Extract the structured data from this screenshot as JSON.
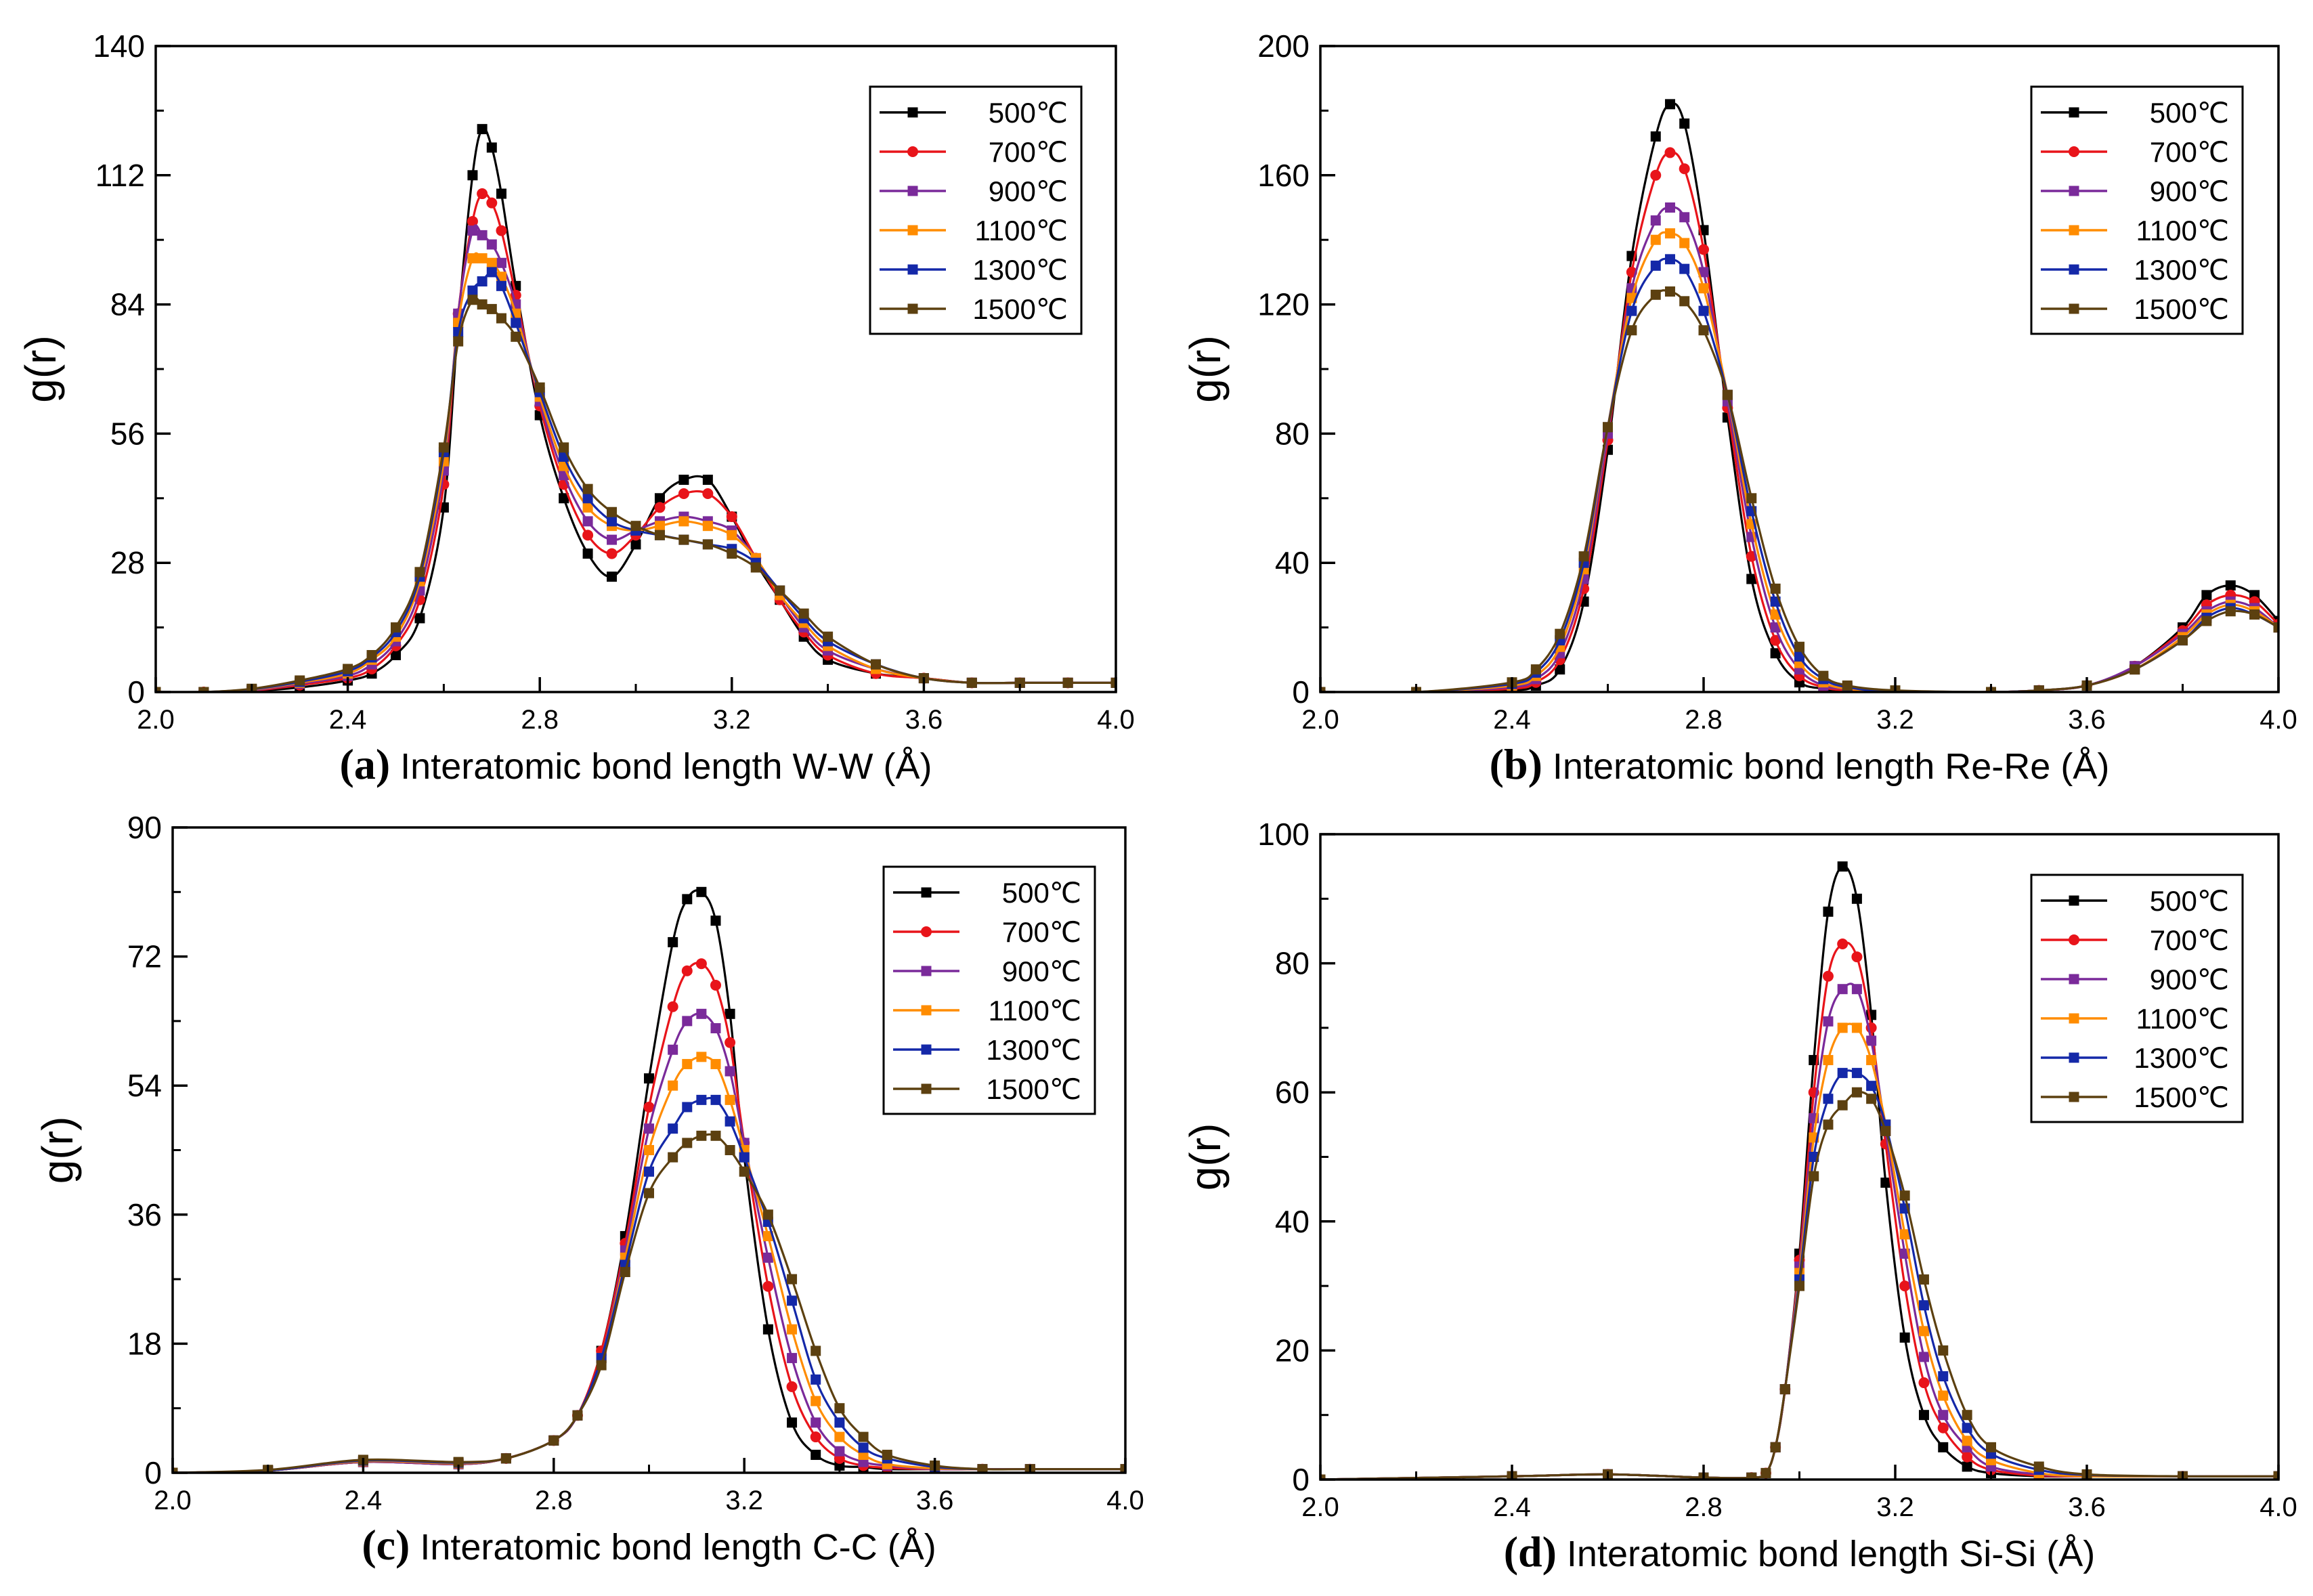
{
  "figure": {
    "series_names": [
      "500℃",
      "700℃",
      "900℃",
      "1100℃",
      "1300℃",
      "1500℃"
    ],
    "series_colors": [
      "#000000",
      "#e8141a",
      "#7a2a9a",
      "#ff8c00",
      "#1428a8",
      "#5c4010"
    ],
    "marker_shapes": [
      "square",
      "circle",
      "square",
      "square",
      "square",
      "square"
    ]
  },
  "chart_data": [
    {
      "id": "a",
      "type": "line",
      "panel_label": "(a)",
      "xlabel": "Interatomic bond length W-W (Å)",
      "ylabel": "g(r)",
      "xlim": [
        2.0,
        4.0
      ],
      "ylim": [
        0,
        140
      ],
      "xticks": [
        2.0,
        2.4,
        2.8,
        3.2,
        3.6,
        4.0
      ],
      "yticks": [
        0,
        28,
        56,
        84,
        112,
        140
      ],
      "legend_position": "top-right",
      "x": [
        2.0,
        2.1,
        2.2,
        2.3,
        2.4,
        2.45,
        2.5,
        2.55,
        2.6,
        2.63,
        2.66,
        2.68,
        2.7,
        2.72,
        2.75,
        2.8,
        2.85,
        2.9,
        2.95,
        3.0,
        3.05,
        3.1,
        3.15,
        3.2,
        3.25,
        3.3,
        3.35,
        3.4,
        3.5,
        3.6,
        3.7,
        3.8,
        3.9,
        4.0
      ],
      "series": [
        {
          "name": "500℃",
          "values": [
            0,
            0,
            0.2,
            1,
            2.5,
            4,
            8,
            16,
            40,
            80,
            112,
            122,
            118,
            108,
            88,
            60,
            42,
            30,
            25,
            32,
            42,
            46,
            46,
            38,
            28,
            20,
            12,
            7,
            4,
            3,
            2,
            2,
            2,
            2
          ]
        },
        {
          "name": "700℃",
          "values": [
            0,
            0,
            0.3,
            1.5,
            3,
            5,
            10,
            20,
            45,
            82,
            102,
            108,
            106,
            100,
            86,
            62,
            45,
            34,
            30,
            34,
            40,
            43,
            43,
            38,
            29,
            20,
            13,
            8,
            4,
            3,
            2,
            2,
            2,
            2
          ]
        },
        {
          "name": "900℃",
          "values": [
            0,
            0,
            0.4,
            1.8,
            3.5,
            6,
            11,
            22,
            48,
            82,
            100,
            99,
            97,
            93,
            84,
            63,
            47,
            37,
            33,
            35,
            37,
            38,
            37,
            35,
            29,
            21,
            14,
            9,
            5,
            3,
            2,
            2,
            2,
            2
          ]
        },
        {
          "name": "1100℃",
          "values": [
            0,
            0,
            0.5,
            2,
            4,
            7,
            12,
            24,
            50,
            80,
            94,
            94,
            93,
            90,
            82,
            64,
            49,
            40,
            36,
            35,
            36,
            37,
            36,
            34,
            29,
            21,
            15,
            10,
            5,
            3,
            2,
            2,
            2,
            2
          ]
        },
        {
          "name": "1300℃",
          "values": [
            0,
            0,
            0.6,
            2.2,
            4.5,
            7.5,
            13,
            25,
            52,
            78,
            87,
            89,
            91,
            88,
            80,
            65,
            51,
            42,
            37,
            35,
            34,
            33,
            32,
            31,
            28,
            22,
            16,
            11,
            6,
            3,
            2,
            2,
            2,
            2
          ]
        },
        {
          "name": "1500℃",
          "values": [
            0,
            0,
            0.7,
            2.5,
            5,
            8,
            14,
            26,
            53,
            76,
            85,
            84,
            83,
            81,
            77,
            66,
            53,
            44,
            39,
            36,
            34,
            33,
            32,
            30,
            27,
            22,
            17,
            12,
            6,
            3,
            2,
            2,
            2,
            2
          ]
        }
      ]
    },
    {
      "id": "b",
      "type": "line",
      "panel_label": "(b)",
      "xlabel": "Interatomic bond length Re-Re (Å)",
      "ylabel": "g(r)",
      "xlim": [
        2.0,
        4.0
      ],
      "ylim": [
        0,
        200
      ],
      "xticks": [
        2.0,
        2.4,
        2.8,
        3.2,
        3.6,
        4.0
      ],
      "yticks": [
        0,
        40,
        80,
        120,
        160,
        200
      ],
      "legend_position": "top-right",
      "x": [
        2.0,
        2.2,
        2.4,
        2.45,
        2.5,
        2.55,
        2.6,
        2.65,
        2.7,
        2.73,
        2.76,
        2.8,
        2.85,
        2.9,
        2.95,
        3.0,
        3.05,
        3.1,
        3.2,
        3.4,
        3.5,
        3.6,
        3.7,
        3.8,
        3.85,
        3.9,
        3.95,
        4.0
      ],
      "series": [
        {
          "name": "500℃",
          "values": [
            0,
            0,
            0.5,
            2,
            7,
            28,
            75,
            135,
            172,
            182,
            176,
            143,
            85,
            35,
            12,
            3,
            1,
            0,
            0,
            0,
            0.5,
            2,
            8,
            20,
            30,
            33,
            30,
            22
          ]
        },
        {
          "name": "700℃",
          "values": [
            0,
            0,
            1,
            3,
            10,
            32,
            78,
            130,
            160,
            167,
            162,
            137,
            88,
            42,
            16,
            5,
            1.5,
            0.5,
            0,
            0,
            0.5,
            2,
            8,
            19,
            27,
            30,
            28,
            21
          ]
        },
        {
          "name": "900℃",
          "values": [
            0,
            0,
            1.5,
            4,
            12,
            35,
            80,
            125,
            146,
            150,
            147,
            130,
            90,
            48,
            20,
            7,
            2,
            1,
            0,
            0,
            0.5,
            2,
            8,
            18,
            25,
            28,
            26,
            20
          ]
        },
        {
          "name": "1100℃",
          "values": [
            0,
            0,
            2,
            5,
            14,
            38,
            82,
            122,
            140,
            142,
            139,
            125,
            92,
            52,
            24,
            9,
            3,
            1,
            0,
            0,
            0.5,
            2,
            7,
            17,
            24,
            27,
            25,
            20
          ]
        },
        {
          "name": "1300℃",
          "values": [
            0,
            0,
            2.5,
            6,
            16,
            40,
            82,
            118,
            132,
            134,
            131,
            118,
            92,
            56,
            28,
            11,
            4,
            1.5,
            0,
            0,
            0.5,
            2,
            7,
            16,
            23,
            26,
            24,
            20
          ]
        },
        {
          "name": "1500℃",
          "values": [
            0,
            0,
            3,
            7,
            18,
            42,
            82,
            112,
            123,
            124,
            121,
            112,
            92,
            60,
            32,
            14,
            5,
            2,
            0.5,
            0,
            0.5,
            2,
            7,
            16,
            22,
            25,
            24,
            20
          ]
        }
      ]
    },
    {
      "id": "c",
      "type": "line",
      "panel_label": "(c)",
      "xlabel": "Interatomic bond length C-C (Å)",
      "ylabel": "g(r)",
      "xlim": [
        2.0,
        4.0
      ],
      "ylim": [
        0,
        90
      ],
      "xticks": [
        2.0,
        2.4,
        2.8,
        3.2,
        3.6,
        4.0
      ],
      "yticks": [
        0,
        18,
        36,
        54,
        72,
        90
      ],
      "legend_position": "top-right",
      "x": [
        2.0,
        2.2,
        2.4,
        2.6,
        2.7,
        2.8,
        2.85,
        2.9,
        2.95,
        3.0,
        3.05,
        3.08,
        3.11,
        3.14,
        3.17,
        3.2,
        3.25,
        3.3,
        3.35,
        3.4,
        3.45,
        3.5,
        3.6,
        3.7,
        3.8,
        4.0
      ],
      "series": [
        {
          "name": "500℃",
          "values": [
            0,
            0.3,
            1.5,
            1.2,
            2,
            4.5,
            8,
            17,
            33,
            55,
            74,
            80,
            81,
            77,
            64,
            44,
            20,
            7,
            2.5,
            1,
            0.8,
            0.5,
            0.5,
            0.5,
            0.5,
            0.5
          ]
        },
        {
          "name": "700℃",
          "values": [
            0,
            0.3,
            1.5,
            1.2,
            2,
            4.5,
            8,
            17,
            32,
            51,
            65,
            70,
            71,
            68,
            60,
            46,
            26,
            12,
            5,
            2,
            1,
            0.7,
            0.5,
            0.5,
            0.5,
            0.5
          ]
        },
        {
          "name": "900℃",
          "values": [
            0,
            0.3,
            1.5,
            1.2,
            2,
            4.5,
            8,
            16,
            31,
            48,
            59,
            63,
            64,
            62,
            56,
            46,
            30,
            16,
            7,
            3,
            1.5,
            1,
            0.5,
            0.5,
            0.5,
            0.5
          ]
        },
        {
          "name": "1100℃",
          "values": [
            0,
            0.3,
            1.6,
            1.3,
            2,
            4.5,
            8,
            16,
            30,
            45,
            54,
            57,
            58,
            57,
            52,
            45,
            33,
            20,
            10,
            5,
            2.5,
            1.2,
            0.6,
            0.5,
            0.5,
            0.5
          ]
        },
        {
          "name": "1300℃",
          "values": [
            0,
            0.3,
            1.7,
            1.4,
            2,
            4.5,
            8,
            16,
            29,
            42,
            48,
            51,
            52,
            52,
            49,
            44,
            35,
            24,
            13,
            7,
            3.5,
            2,
            0.8,
            0.5,
            0.5,
            0.5
          ]
        },
        {
          "name": "1500℃",
          "values": [
            0,
            0.4,
            1.8,
            1.5,
            2,
            4.5,
            8,
            15,
            28,
            39,
            44,
            46,
            47,
            47,
            45,
            42,
            36,
            27,
            17,
            9,
            5,
            2.5,
            1,
            0.5,
            0.5,
            0.5
          ]
        }
      ]
    },
    {
      "id": "d",
      "type": "line",
      "panel_label": "(d)",
      "xlabel": "Interatomic bond length Si-Si (Å)",
      "ylabel": "g(r)",
      "xlim": [
        2.0,
        4.0
      ],
      "ylim": [
        0,
        100
      ],
      "xticks": [
        2.0,
        2.4,
        2.8,
        3.2,
        3.6,
        4.0
      ],
      "yticks": [
        0,
        20,
        40,
        60,
        80,
        100
      ],
      "legend_position": "top-right",
      "x": [
        2.0,
        2.4,
        2.6,
        2.8,
        2.9,
        2.93,
        2.95,
        2.97,
        3.0,
        3.03,
        3.06,
        3.09,
        3.12,
        3.15,
        3.18,
        3.22,
        3.26,
        3.3,
        3.35,
        3.4,
        3.5,
        3.6,
        3.8,
        4.0
      ],
      "series": [
        {
          "name": "500℃",
          "values": [
            0,
            0.5,
            0.8,
            0.3,
            0.3,
            1,
            5,
            14,
            35,
            65,
            88,
            95,
            90,
            72,
            46,
            22,
            10,
            5,
            2,
            1,
            0.5,
            0.5,
            0.5,
            0.5
          ]
        },
        {
          "name": "700℃",
          "values": [
            0,
            0.5,
            0.8,
            0.3,
            0.3,
            1,
            5,
            14,
            34,
            60,
            78,
            83,
            81,
            70,
            52,
            30,
            15,
            8,
            3.5,
            1.5,
            0.6,
            0.5,
            0.5,
            0.5
          ]
        },
        {
          "name": "900℃",
          "values": [
            0,
            0.5,
            0.8,
            0.3,
            0.3,
            1,
            5,
            14,
            33,
            56,
            71,
            76,
            76,
            68,
            54,
            35,
            19,
            10,
            5,
            2,
            0.8,
            0.5,
            0.5,
            0.5
          ]
        },
        {
          "name": "1100℃",
          "values": [
            0,
            0.5,
            0.8,
            0.3,
            0.3,
            1,
            5,
            14,
            32,
            53,
            65,
            70,
            70,
            65,
            55,
            38,
            23,
            13,
            6,
            3,
            1,
            0.5,
            0.5,
            0.5
          ]
        },
        {
          "name": "1300℃",
          "values": [
            0,
            0.5,
            0.8,
            0.3,
            0.3,
            1,
            5,
            14,
            31,
            50,
            59,
            63,
            63,
            61,
            55,
            42,
            27,
            16,
            8,
            4,
            1.5,
            0.7,
            0.5,
            0.5
          ]
        },
        {
          "name": "1500℃",
          "values": [
            0,
            0.5,
            0.8,
            0.3,
            0.3,
            1,
            5,
            14,
            30,
            47,
            55,
            58,
            60,
            59,
            54,
            44,
            31,
            20,
            10,
            5,
            2,
            0.8,
            0.5,
            0.5
          ]
        }
      ]
    }
  ]
}
